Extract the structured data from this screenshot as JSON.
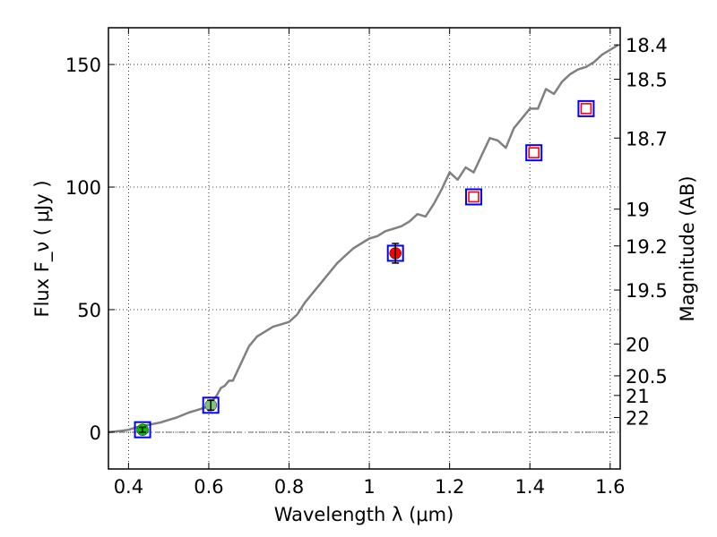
{
  "chart_data": {
    "type": "line",
    "xlabel": "Wavelength  λ (μm)",
    "ylabel": "Flux  F_ν  ( μJy )",
    "y2label": "Magnitude (AB)",
    "xlim": [
      0.35,
      1.625
    ],
    "ylim": [
      -15,
      165
    ],
    "grid": true,
    "x_ticks": [
      0.4,
      0.6,
      0.8,
      1.0,
      1.2,
      1.4,
      1.6
    ],
    "x_tick_labels": [
      "0.4",
      "0.6",
      "0.8",
      "1",
      "1.2",
      "1.4",
      "1.6"
    ],
    "y_ticks": [
      0,
      50,
      100,
      150
    ],
    "y_tick_labels": [
      "0",
      "50",
      "100",
      "150"
    ],
    "y2_ticks": [
      {
        "label": "18.4",
        "flux": 158
      },
      {
        "label": "18.5",
        "flux": 144
      },
      {
        "label": "18.7",
        "flux": 120
      },
      {
        "label": "19",
        "flux": 91
      },
      {
        "label": "19.2",
        "flux": 76
      },
      {
        "label": "19.5",
        "flux": 58
      },
      {
        "label": "20",
        "flux": 36
      },
      {
        "label": "20.5",
        "flux": 23
      },
      {
        "label": "21",
        "flux": 15
      },
      {
        "label": "22",
        "flux": 6
      }
    ],
    "series": [
      {
        "kind": "model-spectrum",
        "color": "#808080",
        "x": [
          0.35,
          0.38,
          0.4,
          0.42,
          0.45,
          0.48,
          0.5,
          0.52,
          0.55,
          0.57,
          0.59,
          0.6,
          0.62,
          0.63,
          0.64,
          0.65,
          0.66,
          0.68,
          0.7,
          0.72,
          0.74,
          0.76,
          0.78,
          0.8,
          0.82,
          0.84,
          0.86,
          0.88,
          0.9,
          0.92,
          0.94,
          0.96,
          0.98,
          1.0,
          1.02,
          1.04,
          1.06,
          1.08,
          1.1,
          1.12,
          1.14,
          1.16,
          1.18,
          1.2,
          1.22,
          1.24,
          1.26,
          1.28,
          1.3,
          1.32,
          1.34,
          1.36,
          1.38,
          1.4,
          1.42,
          1.44,
          1.46,
          1.48,
          1.5,
          1.52,
          1.54,
          1.56,
          1.58,
          1.6,
          1.62
        ],
        "y": [
          0,
          0.5,
          1,
          2,
          3,
          4,
          5,
          6,
          8,
          9,
          10,
          11,
          15,
          18,
          19,
          21,
          21,
          28,
          35,
          39,
          41,
          43,
          44,
          45,
          48,
          53,
          57,
          61,
          65,
          69,
          72,
          75,
          77,
          79,
          80,
          82,
          83,
          84,
          86,
          89,
          88,
          93,
          99,
          106,
          103,
          108,
          106,
          113,
          120,
          119,
          116,
          124,
          128,
          132,
          132,
          140,
          138,
          143,
          146,
          148,
          149,
          151,
          154,
          156,
          158
        ]
      },
      {
        "kind": "observed-photometry",
        "marker": "circle",
        "points": [
          {
            "x": 0.435,
            "y": 1,
            "color": "#00c000",
            "err": 1
          },
          {
            "x": 0.605,
            "y": 11,
            "color": "#80c080",
            "err": 2
          },
          {
            "x": 1.065,
            "y": 73,
            "color": "#ff0000",
            "err": 4
          }
        ]
      },
      {
        "kind": "model-photometry",
        "marker": "square",
        "color": "#0000ff",
        "points": [
          {
            "x": 0.435,
            "y": 1
          },
          {
            "x": 0.605,
            "y": 11
          },
          {
            "x": 1.065,
            "y": 73
          },
          {
            "x": 1.26,
            "y": 96
          },
          {
            "x": 1.41,
            "y": 114
          },
          {
            "x": 1.54,
            "y": 132
          }
        ]
      },
      {
        "kind": "upper-limit-photometry",
        "marker": "open-square",
        "color": "#ff0000",
        "points": [
          {
            "x": 1.26,
            "y": 96
          },
          {
            "x": 1.41,
            "y": 114
          },
          {
            "x": 1.54,
            "y": 132
          }
        ]
      }
    ]
  }
}
